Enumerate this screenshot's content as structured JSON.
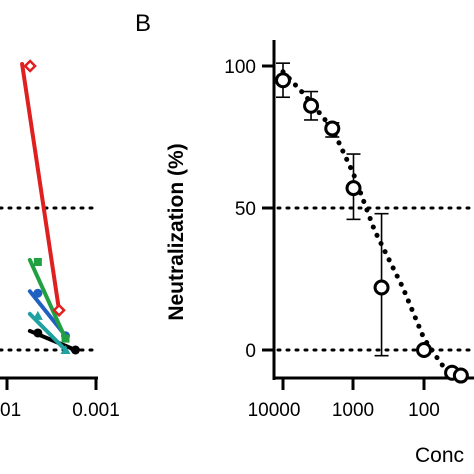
{
  "chart_data": [
    {
      "panel": "",
      "type": "line",
      "x_scale": "log-reversed",
      "x_tick_labels": [
        "01",
        "0.001"
      ],
      "series": [
        {
          "color": "#e02020",
          "marker": "diamond-open",
          "x": [
            0.0055,
            0.0026
          ],
          "y": [
            100,
            14
          ]
        },
        {
          "color": "#20a040",
          "marker": "square-filled",
          "x": [
            0.0045,
            0.0022
          ],
          "y": [
            31,
            4
          ]
        },
        {
          "color": "#2060c0",
          "marker": "circle-filled",
          "x": [
            0.0045,
            0.0022
          ],
          "y": [
            20,
            5
          ]
        },
        {
          "color": "#20a0a0",
          "marker": "triangle-filled",
          "x": [
            0.0045,
            0.0022
          ],
          "y": [
            12,
            0
          ]
        },
        {
          "color": "#000000",
          "marker": "circle-filled",
          "x": [
            0.0045,
            0.0017
          ],
          "y": [
            6,
            0
          ]
        }
      ],
      "reference_lines_y": [
        50,
        0
      ],
      "ylim": [
        -10,
        110
      ]
    },
    {
      "panel": "B",
      "type": "scatter",
      "x_scale": "log-reversed",
      "xlabel": "Conc",
      "ylabel": "Neutralization (%)",
      "x_tick_labels": [
        "10000",
        "1000",
        "100"
      ],
      "x_ticks": [
        10000,
        1000,
        100
      ],
      "y_ticks": [
        0,
        50,
        100
      ],
      "ylim": [
        -10,
        110
      ],
      "reference_lines_y": [
        50,
        0
      ],
      "points": {
        "x": [
          10000,
          4000,
          2000,
          1000,
          400,
          100,
          40,
          30
        ],
        "y": [
          95,
          86,
          78,
          57,
          22,
          0,
          -8,
          -9
        ],
        "err_low": [
          89,
          81,
          75,
          46,
          -2,
          null,
          null,
          null
        ],
        "err_high": [
          101,
          91,
          80,
          69,
          48,
          null,
          null,
          null
        ]
      },
      "fit_curve": {
        "x": [
          10000,
          5000,
          2000,
          1000,
          500,
          200,
          100,
          60,
          40
        ],
        "y": [
          98,
          90,
          78,
          62,
          42,
          22,
          4,
          -4,
          -10
        ]
      }
    }
  ],
  "panel_b": {
    "letter": "B",
    "ylabel": "Neutralization (%)",
    "xlabel": "Conc",
    "yticks": [
      "100",
      "50",
      "0"
    ],
    "xticks": [
      "10000",
      "1000",
      "100"
    ]
  },
  "panel_a": {
    "xticks": [
      "01",
      "0.001"
    ]
  }
}
